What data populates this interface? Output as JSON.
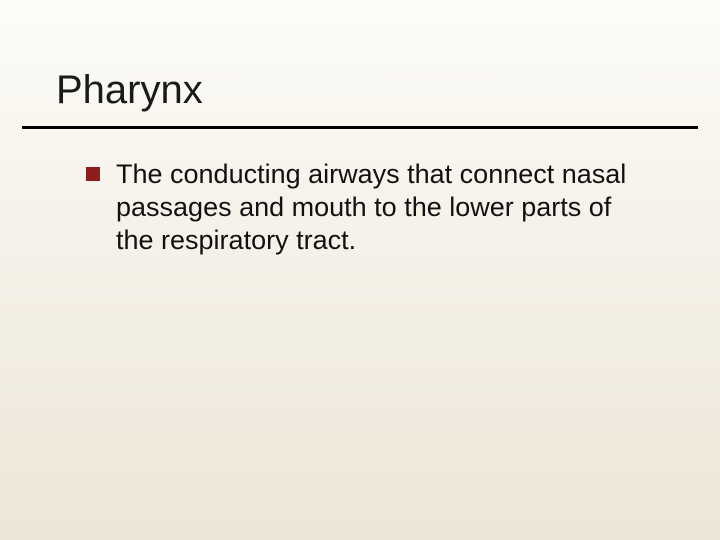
{
  "slide": {
    "title": "Pharynx",
    "title_fontsize": 40,
    "title_color": "#1a1a1a",
    "rule_color": "#000000",
    "rule_thickness": 3,
    "background_gradient": [
      "#fdfcf8",
      "#f6f2ea",
      "#ede6d7"
    ],
    "bullets": [
      {
        "marker_color": "#8b1d1d",
        "marker_size": 14,
        "text": "The conducting airways that connect nasal passages and mouth to the lower parts of the respiratory tract.",
        "text_fontsize": 27,
        "text_color": "#111111"
      }
    ]
  }
}
